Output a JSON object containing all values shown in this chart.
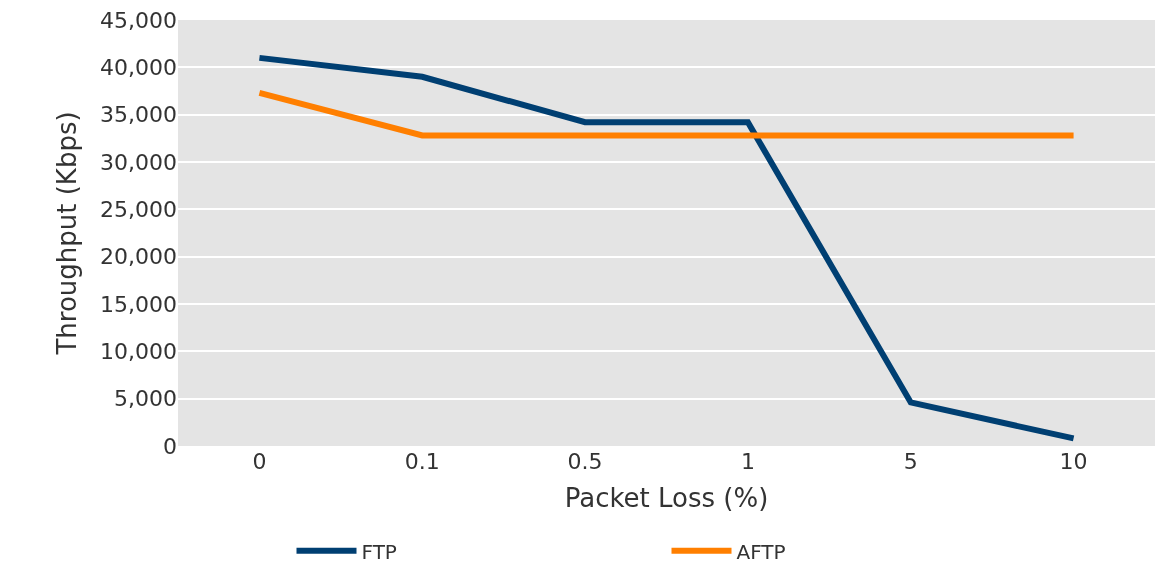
{
  "chart_data": {
    "type": "line",
    "xlabel": "Packet Loss (%)",
    "ylabel": "Throughput (Kbps)",
    "categories": [
      "0",
      "0.1",
      "0.5",
      "1",
      "5",
      "10"
    ],
    "series": [
      {
        "name": "FTP",
        "color": "#003f72",
        "values": [
          41000,
          39000,
          34200,
          34200,
          4600,
          800
        ]
      },
      {
        "name": "AFTP",
        "color": "#ff7f00",
        "values": [
          37300,
          32800,
          32800,
          32800,
          32800,
          32800
        ]
      }
    ],
    "ylim": [
      0,
      45000
    ],
    "yticks": [
      {
        "value": 0,
        "label": "0"
      },
      {
        "value": 5000,
        "label": "5,000"
      },
      {
        "value": 10000,
        "label": "10,000"
      },
      {
        "value": 15000,
        "label": "15,000"
      },
      {
        "value": 20000,
        "label": "20,000"
      },
      {
        "value": 25000,
        "label": "25,000"
      },
      {
        "value": 30000,
        "label": "30,000"
      },
      {
        "value": 35000,
        "label": "35,000"
      },
      {
        "value": 40000,
        "label": "40,000"
      },
      {
        "value": 45000,
        "label": "45,000"
      }
    ],
    "grid": "y",
    "legend": "bottom",
    "marker": "none",
    "line_style": "solid"
  }
}
